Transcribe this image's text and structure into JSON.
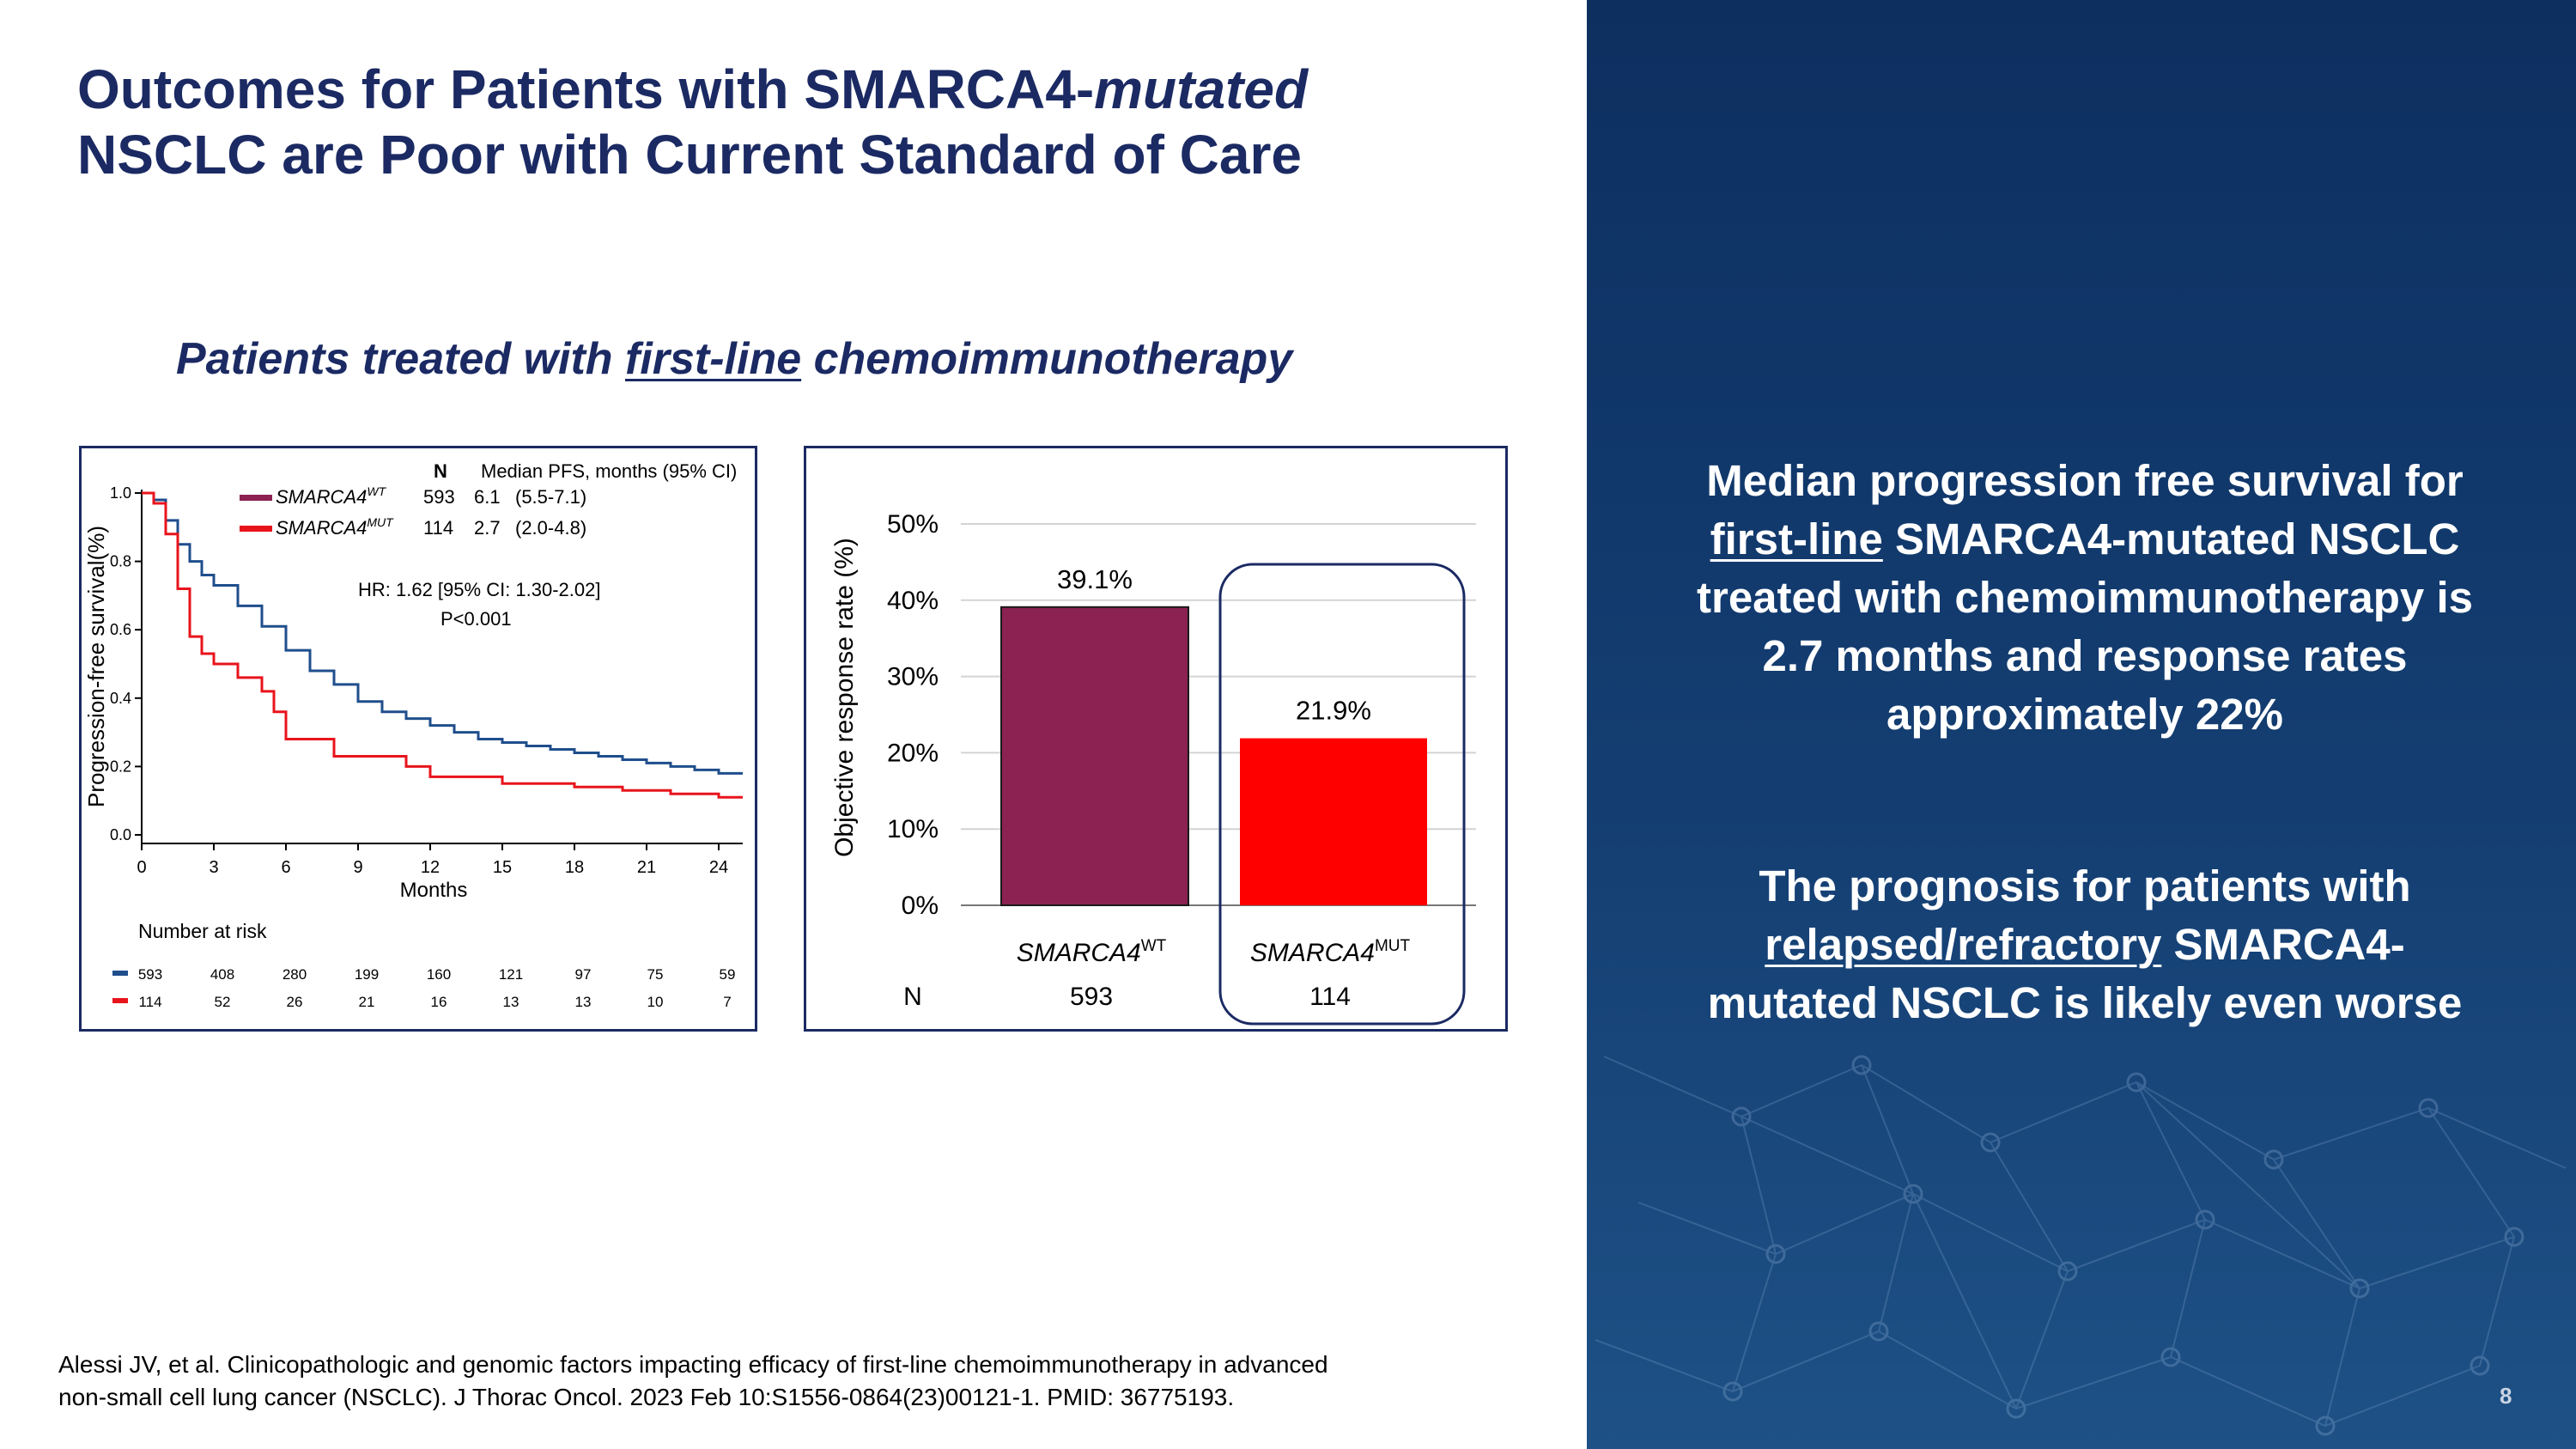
{
  "slide": {
    "title_part1": "Outcomes for Patients with SMARCA4-",
    "title_italic": "mutated",
    "title_line2": "NSCLC are Poor with Current Standard of Care",
    "subtitle_before": "Patients treated with ",
    "subtitle_underlined": "first-line",
    "subtitle_after": " chemoimmunotherapy",
    "citation_line1": "Alessi JV, et al. Clinicopathologic and genomic factors impacting efficacy of first-line chemoimmunotherapy in advanced",
    "citation_line2": "non-small cell lung cancer (NSCLC). J Thorac Oncol. 2023 Feb 10:S1556-0864(23)00121-1. PMID: 36775193.",
    "page_number": "8"
  },
  "right_panel": {
    "para1_line1": "Median progression free survival for",
    "para1_line2_underlined": "first-line",
    "para1_line2_rest": " SMARCA4-mutated NSCLC",
    "para1_line3": "treated with chemoimmunotherapy is",
    "para1_line4": "2.7 months and response rates",
    "para1_line5": "approximately 22%",
    "para2_line1": "The prognosis for patients with",
    "para2_line2_underlined": "relapsed/refractory",
    "para2_line2_rest": " SMARCA4-",
    "para2_line3": "mutated NSCLC is likely even worse"
  },
  "colors": {
    "navy": "#1b2a63",
    "wt": "#8b2252",
    "mut": "#ff0000",
    "km_wt_line": "#1f4e8c",
    "km_mut_line": "#e8141c"
  },
  "chart_data": [
    {
      "type": "line",
      "title": "",
      "xlabel": "Months",
      "ylabel": "Progression-free survival(%)",
      "xlim": [
        0,
        25
      ],
      "ylim": [
        0,
        1.0
      ],
      "x_ticks": [
        "0",
        "3",
        "6",
        "9",
        "12",
        "15",
        "18",
        "21",
        "24"
      ],
      "y_ticks": [
        "0.0",
        "0.2",
        "0.4",
        "0.6",
        "0.8",
        "1.0"
      ],
      "legend_header_n": "N",
      "legend_header_stat": "Median PFS, months (95% CI)",
      "series": [
        {
          "name": "SMARCA4",
          "sup": "WT",
          "n": "593",
          "median": "6.1",
          "ci": "(5.5-7.1)",
          "x": [
            0,
            0.5,
            1,
            1.5,
            2,
            2.5,
            3,
            4,
            5,
            6,
            7,
            8,
            9,
            10,
            11,
            12,
            13,
            14,
            15,
            16,
            17,
            18,
            19,
            20,
            21,
            22,
            23,
            24,
            25
          ],
          "y": [
            1.0,
            0.98,
            0.92,
            0.85,
            0.8,
            0.76,
            0.73,
            0.67,
            0.61,
            0.54,
            0.48,
            0.44,
            0.39,
            0.36,
            0.34,
            0.32,
            0.3,
            0.28,
            0.27,
            0.26,
            0.25,
            0.24,
            0.23,
            0.22,
            0.21,
            0.2,
            0.19,
            0.18,
            0.18
          ]
        },
        {
          "name": "SMARCA4",
          "sup": "MUT",
          "n": "114",
          "median": "2.7",
          "ci": "(2.0-4.8)",
          "x": [
            0,
            0.5,
            1,
            1.5,
            2,
            2.5,
            3,
            4,
            5,
            5.5,
            6,
            7,
            8,
            9,
            10,
            10.5,
            11,
            12,
            13,
            14,
            15,
            16,
            17,
            18,
            19,
            20,
            21,
            22,
            23,
            24,
            25
          ],
          "y": [
            1.0,
            0.97,
            0.88,
            0.72,
            0.58,
            0.53,
            0.5,
            0.46,
            0.42,
            0.36,
            0.28,
            0.28,
            0.23,
            0.23,
            0.23,
            0.23,
            0.2,
            0.17,
            0.17,
            0.17,
            0.15,
            0.15,
            0.15,
            0.14,
            0.14,
            0.13,
            0.13,
            0.12,
            0.12,
            0.11,
            0.11
          ]
        }
      ],
      "annotations": [
        "HR: 1.62 [95% CI: 1.30-2.02]",
        "P<0.001"
      ],
      "number_at_risk_label": "Number at risk",
      "number_at_risk": {
        "WT": [
          "593",
          "408",
          "280",
          "199",
          "160",
          "121",
          "97",
          "75",
          "59"
        ],
        "MUT": [
          "114",
          "52",
          "26",
          "21",
          "16",
          "13",
          "13",
          "10",
          "7"
        ]
      }
    },
    {
      "type": "bar",
      "title": "",
      "xlabel": "",
      "ylabel": "Objective response rate (%)",
      "ylim": [
        0,
        50
      ],
      "y_ticks": [
        "0%",
        "10%",
        "20%",
        "30%",
        "40%",
        "50%"
      ],
      "categories": [
        "SMARCA4",
        "SMARCA4"
      ],
      "category_sups": [
        "WT",
        "MUT"
      ],
      "values": [
        39.1,
        21.9
      ],
      "data_labels": [
        "39.1%",
        "21.9%"
      ],
      "n_label": "N",
      "n_values": [
        "593",
        "114"
      ]
    }
  ]
}
